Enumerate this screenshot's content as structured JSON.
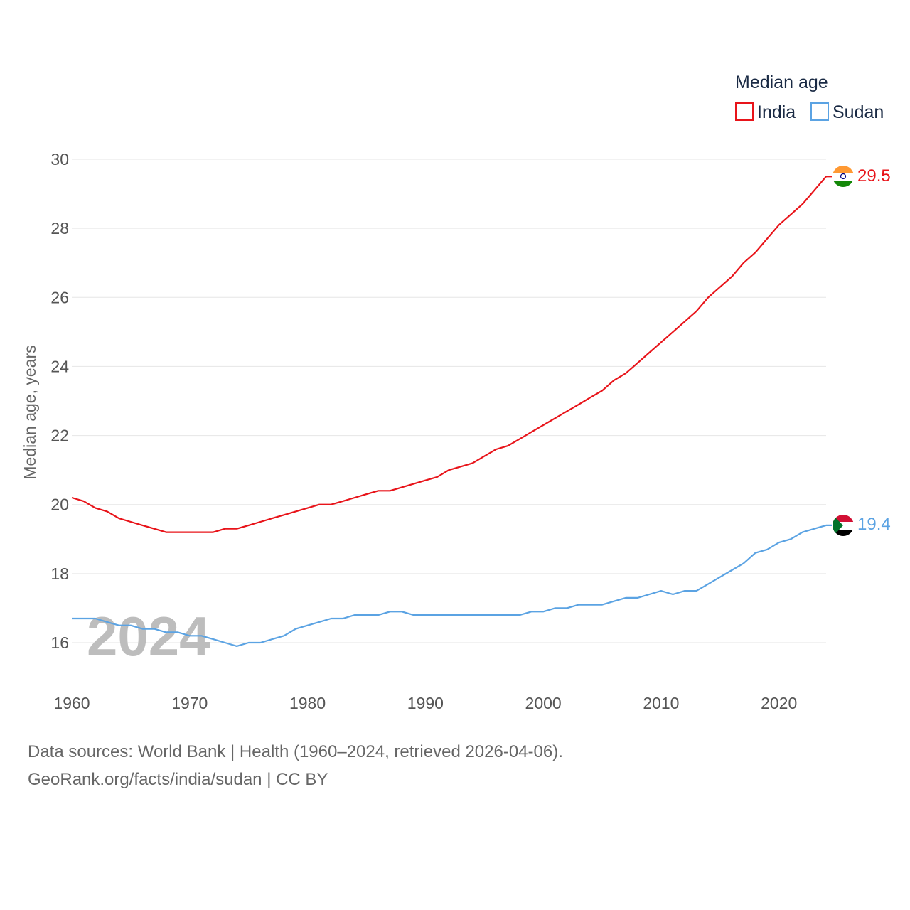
{
  "chart_data": {
    "type": "line",
    "title": "",
    "xlabel": "",
    "ylabel": "Median age, years",
    "xlim": [
      1960,
      2024
    ],
    "ylim": [
      15,
      30.5
    ],
    "x_ticks": [
      1960,
      1970,
      1980,
      1990,
      2000,
      2010,
      2020
    ],
    "y_ticks": [
      16,
      18,
      20,
      22,
      24,
      26,
      28,
      30
    ],
    "grid": true,
    "legend": {
      "title": "Median age",
      "position": "top-right"
    },
    "watermark_year": "2024",
    "x": [
      1960,
      1961,
      1962,
      1963,
      1964,
      1965,
      1966,
      1967,
      1968,
      1969,
      1970,
      1971,
      1972,
      1973,
      1974,
      1975,
      1976,
      1977,
      1978,
      1979,
      1980,
      1981,
      1982,
      1983,
      1984,
      1985,
      1986,
      1987,
      1988,
      1989,
      1990,
      1991,
      1992,
      1993,
      1994,
      1995,
      1996,
      1997,
      1998,
      1999,
      2000,
      2001,
      2002,
      2003,
      2004,
      2005,
      2006,
      2007,
      2008,
      2009,
      2010,
      2011,
      2012,
      2013,
      2014,
      2015,
      2016,
      2017,
      2018,
      2019,
      2020,
      2021,
      2022,
      2023,
      2024
    ],
    "series": [
      {
        "name": "India",
        "color": "#e8141a",
        "end_label": "29.5",
        "flag": "india-flag",
        "values": [
          20.2,
          20.1,
          19.9,
          19.8,
          19.6,
          19.5,
          19.4,
          19.3,
          19.2,
          19.2,
          19.2,
          19.2,
          19.2,
          19.3,
          19.3,
          19.4,
          19.5,
          19.6,
          19.7,
          19.8,
          19.9,
          20.0,
          20.0,
          20.1,
          20.2,
          20.3,
          20.4,
          20.4,
          20.5,
          20.6,
          20.7,
          20.8,
          21.0,
          21.1,
          21.2,
          21.4,
          21.6,
          21.7,
          21.9,
          22.1,
          22.3,
          22.5,
          22.7,
          22.9,
          23.1,
          23.3,
          23.6,
          23.8,
          24.1,
          24.4,
          24.7,
          25.0,
          25.3,
          25.6,
          26.0,
          26.3,
          26.6,
          27.0,
          27.3,
          27.7,
          28.1,
          28.4,
          28.7,
          29.1,
          29.5
        ]
      },
      {
        "name": "Sudan",
        "color": "#5ba3e3",
        "end_label": "19.4",
        "flag": "sudan-flag",
        "values": [
          16.7,
          16.7,
          16.7,
          16.6,
          16.5,
          16.5,
          16.4,
          16.4,
          16.3,
          16.3,
          16.2,
          16.2,
          16.1,
          16.0,
          15.9,
          16.0,
          16.0,
          16.1,
          16.2,
          16.4,
          16.5,
          16.6,
          16.7,
          16.7,
          16.8,
          16.8,
          16.8,
          16.9,
          16.9,
          16.8,
          16.8,
          16.8,
          16.8,
          16.8,
          16.8,
          16.8,
          16.8,
          16.8,
          16.8,
          16.9,
          16.9,
          17.0,
          17.0,
          17.1,
          17.1,
          17.1,
          17.2,
          17.3,
          17.3,
          17.4,
          17.5,
          17.4,
          17.5,
          17.5,
          17.7,
          17.9,
          18.1,
          18.3,
          18.6,
          18.7,
          18.9,
          19.0,
          19.2,
          19.3,
          19.4
        ]
      }
    ]
  },
  "footer": {
    "source": "Data sources: World Bank | Health (1960–2024, retrieved 2026-04-06).",
    "attribution": "GeoRank.org/facts/india/sudan | CC BY"
  }
}
